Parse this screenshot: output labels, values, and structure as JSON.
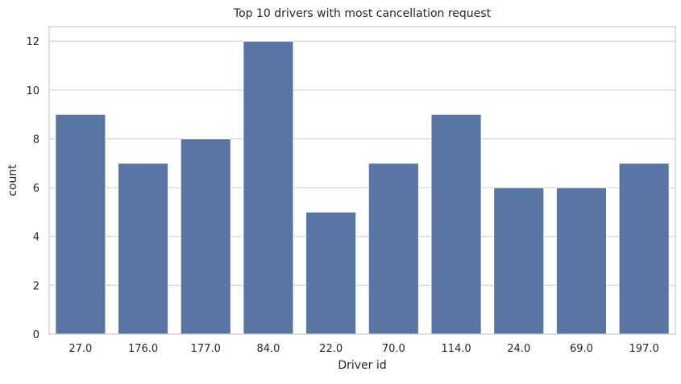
{
  "chart_data": {
    "type": "bar",
    "title": "Top 10 drivers with most cancellation request",
    "xlabel": "Driver id",
    "ylabel": "count",
    "categories": [
      "27.0",
      "176.0",
      "177.0",
      "84.0",
      "22.0",
      "70.0",
      "114.0",
      "24.0",
      "69.0",
      "197.0"
    ],
    "values": [
      9,
      7,
      8,
      12,
      5,
      7,
      9,
      6,
      6,
      7
    ],
    "ylim": [
      0,
      12.6
    ],
    "yticks": [
      0,
      2,
      4,
      6,
      8,
      10,
      12
    ],
    "grid": "horizontal",
    "bar_color": "#5975a4",
    "grid_color": "#cccccc",
    "axes_edge_color": "#cccccc"
  }
}
